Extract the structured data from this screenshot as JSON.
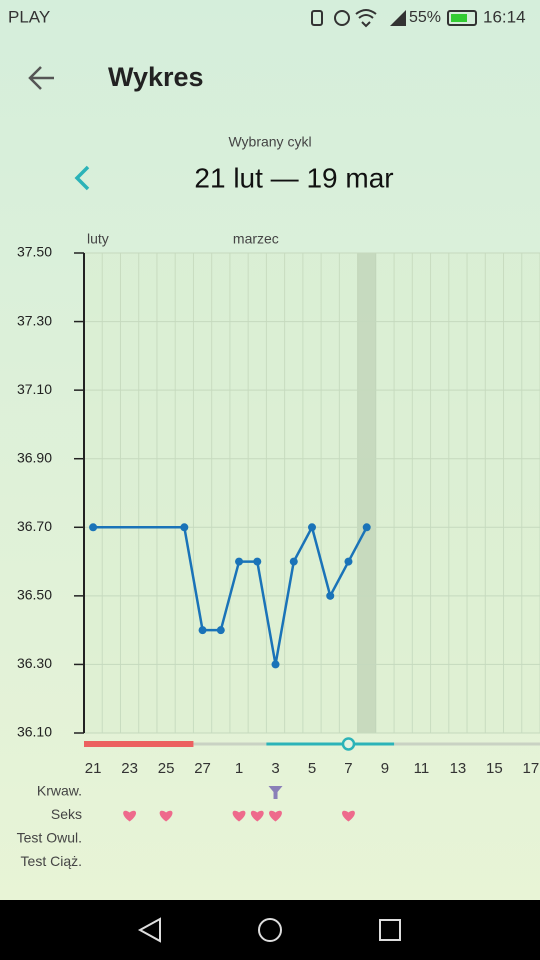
{
  "status_bar": {
    "carrier": "PLAY",
    "battery": "55%",
    "time": "16:14"
  },
  "header": {
    "title": "Wykres"
  },
  "cycle": {
    "caption": "Wybrany cykl",
    "range": "21 lut — 19 mar"
  },
  "chart_data": {
    "type": "line",
    "x": [
      "02-21",
      "02-26",
      "02-27",
      "02-28",
      "03-01",
      "03-02",
      "03-03",
      "03-04",
      "03-05",
      "03-06",
      "03-07",
      "03-08"
    ],
    "values": [
      36.7,
      36.7,
      36.4,
      36.4,
      36.6,
      36.6,
      36.3,
      36.6,
      36.7,
      36.5,
      36.6,
      36.7
    ],
    "color": "#1a73b8",
    "xlim": [
      "02-21",
      "03-17"
    ],
    "xticks": [
      {
        "value": "02-21",
        "label": "21"
      },
      {
        "value": "02-23",
        "label": "23"
      },
      {
        "value": "02-25",
        "label": "25"
      },
      {
        "value": "02-27",
        "label": "27"
      },
      {
        "value": "03-01",
        "label": "1"
      },
      {
        "value": "03-03",
        "label": "3"
      },
      {
        "value": "03-05",
        "label": "5"
      },
      {
        "value": "03-07",
        "label": "7"
      },
      {
        "value": "03-09",
        "label": "9"
      },
      {
        "value": "03-11",
        "label": "11"
      },
      {
        "value": "03-13",
        "label": "13"
      },
      {
        "value": "03-15",
        "label": "15"
      },
      {
        "value": "03-17",
        "label": "17"
      }
    ],
    "ylim": [
      36.1,
      37.5
    ],
    "yticks": [
      {
        "value": 36.1,
        "label": "36.10"
      },
      {
        "value": 36.3,
        "label": "36.30"
      },
      {
        "value": 36.5,
        "label": "36.50"
      },
      {
        "value": 36.7,
        "label": "36.70"
      },
      {
        "value": 36.9,
        "label": "36.90"
      },
      {
        "value": 37.1,
        "label": "37.10"
      },
      {
        "value": 37.3,
        "label": "37.30"
      },
      {
        "value": 37.5,
        "label": "37.50"
      }
    ],
    "grid": true,
    "months": [
      {
        "name": "luty",
        "start": "02-21"
      },
      {
        "name": "marzec",
        "start": "03-01"
      }
    ],
    "highlight_x": "03-08",
    "period": [
      "02-21",
      "02-26"
    ],
    "fertile": [
      "03-03",
      "03-09"
    ],
    "ovulation": "03-07",
    "rows": [
      {
        "label": "Krwaw.",
        "days": [
          "03-03"
        ],
        "icon": "drop"
      },
      {
        "label": "Seks",
        "days": [
          "02-23",
          "02-25",
          "03-01",
          "03-02",
          "03-03",
          "03-07"
        ],
        "icon": "heart"
      },
      {
        "label": "Test Owul.",
        "days": [],
        "icon": "none"
      },
      {
        "label": "Test Ciąż.",
        "days": [],
        "icon": "none"
      }
    ]
  }
}
